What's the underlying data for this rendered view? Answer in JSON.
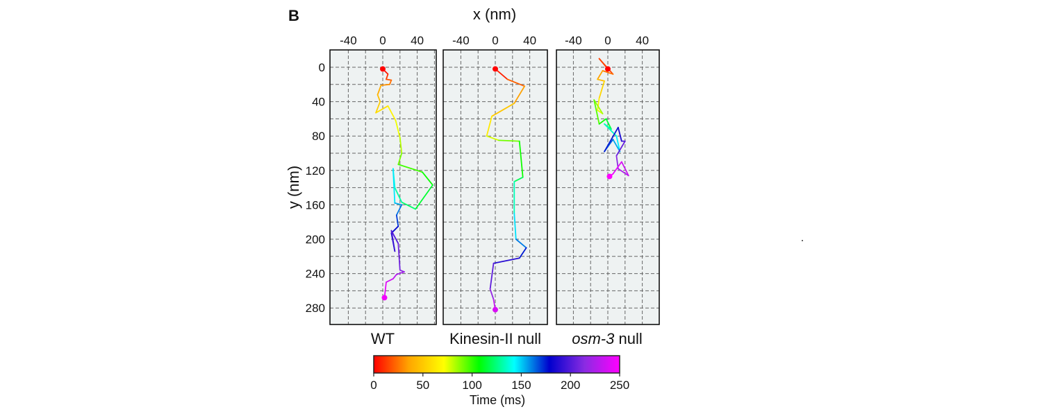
{
  "figure": {
    "panel_letter": "B",
    "x_axis_label": "x (nm)",
    "y_axis_label": "y (nm)"
  },
  "chart_data": {
    "type": "line",
    "xlim": [
      -70,
      70
    ],
    "ylim": [
      0,
      300
    ],
    "y_inverted": true,
    "x_ticks": [
      -40,
      0,
      40
    ],
    "x_tick_labels": [
      "-40",
      "0",
      "40"
    ],
    "y_ticks": [
      0,
      40,
      80,
      120,
      160,
      200,
      240,
      280
    ],
    "y_tick_labels": [
      "0",
      "40",
      "80",
      "120",
      "160",
      "200",
      "240",
      "280"
    ],
    "grid": true,
    "grid_step": 20,
    "color_map": "rainbow (time)",
    "colorbar": {
      "label": "Time (ms)",
      "min": 0,
      "max": 250,
      "ticks": [
        0,
        50,
        100,
        150,
        200,
        250
      ],
      "tick_labels": [
        "0",
        "50",
        "100",
        "150",
        "200",
        "250"
      ],
      "colors": [
        "#ff0000",
        "#ffa500",
        "#ffff00",
        "#00ff00",
        "#00ffff",
        "#0000cd",
        "#8a2be2",
        "#ff00ff"
      ]
    },
    "panels": [
      {
        "label": "WT",
        "label_italic": false,
        "trajectory": [
          {
            "x": 0,
            "y": 2,
            "t": 0
          },
          {
            "x": 6,
            "y": 8,
            "t": 7
          },
          {
            "x": 4,
            "y": 14,
            "t": 14
          },
          {
            "x": 10,
            "y": 15,
            "t": 21
          },
          {
            "x": 8,
            "y": 20,
            "t": 28
          },
          {
            "x": -2,
            "y": 21,
            "t": 35
          },
          {
            "x": -6,
            "y": 32,
            "t": 42
          },
          {
            "x": -3,
            "y": 40,
            "t": 49
          },
          {
            "x": -8,
            "y": 53,
            "t": 56
          },
          {
            "x": 6,
            "y": 45,
            "t": 63
          },
          {
            "x": 15,
            "y": 62,
            "t": 70
          },
          {
            "x": 20,
            "y": 82,
            "t": 78
          },
          {
            "x": 22,
            "y": 100,
            "t": 86
          },
          {
            "x": 18,
            "y": 113,
            "t": 94
          },
          {
            "x": 46,
            "y": 122,
            "t": 102
          },
          {
            "x": 58,
            "y": 137,
            "t": 110
          },
          {
            "x": 38,
            "y": 165,
            "t": 118
          },
          {
            "x": 22,
            "y": 157,
            "t": 126
          },
          {
            "x": 14,
            "y": 140,
            "t": 134
          },
          {
            "x": 12,
            "y": 118,
            "t": 142
          },
          {
            "x": 14,
            "y": 158,
            "t": 150
          },
          {
            "x": 22,
            "y": 160,
            "t": 158
          },
          {
            "x": 16,
            "y": 172,
            "t": 166
          },
          {
            "x": 18,
            "y": 185,
            "t": 174
          },
          {
            "x": 10,
            "y": 193,
            "t": 182
          },
          {
            "x": 14,
            "y": 214,
            "t": 190
          },
          {
            "x": 10,
            "y": 190,
            "t": 197
          },
          {
            "x": 18,
            "y": 205,
            "t": 204
          },
          {
            "x": 20,
            "y": 236,
            "t": 211
          },
          {
            "x": 25,
            "y": 238,
            "t": 218
          },
          {
            "x": 16,
            "y": 241,
            "t": 225
          },
          {
            "x": 12,
            "y": 246,
            "t": 232
          },
          {
            "x": 4,
            "y": 250,
            "t": 239
          },
          {
            "x": 2,
            "y": 268,
            "t": 246
          }
        ]
      },
      {
        "label": "Kinesin-II null",
        "label_italic": false,
        "trajectory": [
          {
            "x": 0,
            "y": 2,
            "t": 0
          },
          {
            "x": 14,
            "y": 14,
            "t": 14
          },
          {
            "x": 34,
            "y": 22,
            "t": 28
          },
          {
            "x": 22,
            "y": 42,
            "t": 42
          },
          {
            "x": -4,
            "y": 57,
            "t": 56
          },
          {
            "x": -10,
            "y": 80,
            "t": 70
          },
          {
            "x": 4,
            "y": 85,
            "t": 84
          },
          {
            "x": 28,
            "y": 86,
            "t": 98
          },
          {
            "x": 32,
            "y": 128,
            "t": 112
          },
          {
            "x": 22,
            "y": 133,
            "t": 126
          },
          {
            "x": 22,
            "y": 170,
            "t": 140
          },
          {
            "x": 24,
            "y": 200,
            "t": 154
          },
          {
            "x": 36,
            "y": 210,
            "t": 168
          },
          {
            "x": 28,
            "y": 222,
            "t": 182
          },
          {
            "x": -2,
            "y": 228,
            "t": 196
          },
          {
            "x": -6,
            "y": 258,
            "t": 210
          },
          {
            "x": -2,
            "y": 270,
            "t": 224
          },
          {
            "x": 0,
            "y": 282,
            "t": 238
          }
        ]
      },
      {
        "label": "osm-3",
        "label_suffix": " null",
        "label_italic": true,
        "trajectory": [
          {
            "x": 0,
            "y": 2,
            "t": 0
          },
          {
            "x": -10,
            "y": -10,
            "t": 10
          },
          {
            "x": 6,
            "y": 8,
            "t": 20
          },
          {
            "x": -6,
            "y": 4,
            "t": 30
          },
          {
            "x": -12,
            "y": 14,
            "t": 40
          },
          {
            "x": -4,
            "y": 16,
            "t": 50
          },
          {
            "x": -10,
            "y": 36,
            "t": 60
          },
          {
            "x": -12,
            "y": 50,
            "t": 70
          },
          {
            "x": -6,
            "y": 54,
            "t": 80
          },
          {
            "x": -16,
            "y": 38,
            "t": 90
          },
          {
            "x": -10,
            "y": 66,
            "t": 100
          },
          {
            "x": -2,
            "y": 60,
            "t": 110
          },
          {
            "x": 4,
            "y": 72,
            "t": 120
          },
          {
            "x": -4,
            "y": 66,
            "t": 130
          },
          {
            "x": 10,
            "y": 80,
            "t": 140
          },
          {
            "x": 14,
            "y": 98,
            "t": 150
          },
          {
            "x": 6,
            "y": 84,
            "t": 160
          },
          {
            "x": -4,
            "y": 98,
            "t": 170
          },
          {
            "x": 12,
            "y": 70,
            "t": 180
          },
          {
            "x": 16,
            "y": 86,
            "t": 190
          },
          {
            "x": 20,
            "y": 86,
            "t": 200
          },
          {
            "x": 10,
            "y": 103,
            "t": 210
          },
          {
            "x": 12,
            "y": 118,
            "t": 220
          },
          {
            "x": 24,
            "y": 126,
            "t": 230
          },
          {
            "x": 16,
            "y": 110,
            "t": 238
          },
          {
            "x": 6,
            "y": 124,
            "t": 245
          },
          {
            "x": 2,
            "y": 127,
            "t": 250
          }
        ]
      }
    ]
  }
}
